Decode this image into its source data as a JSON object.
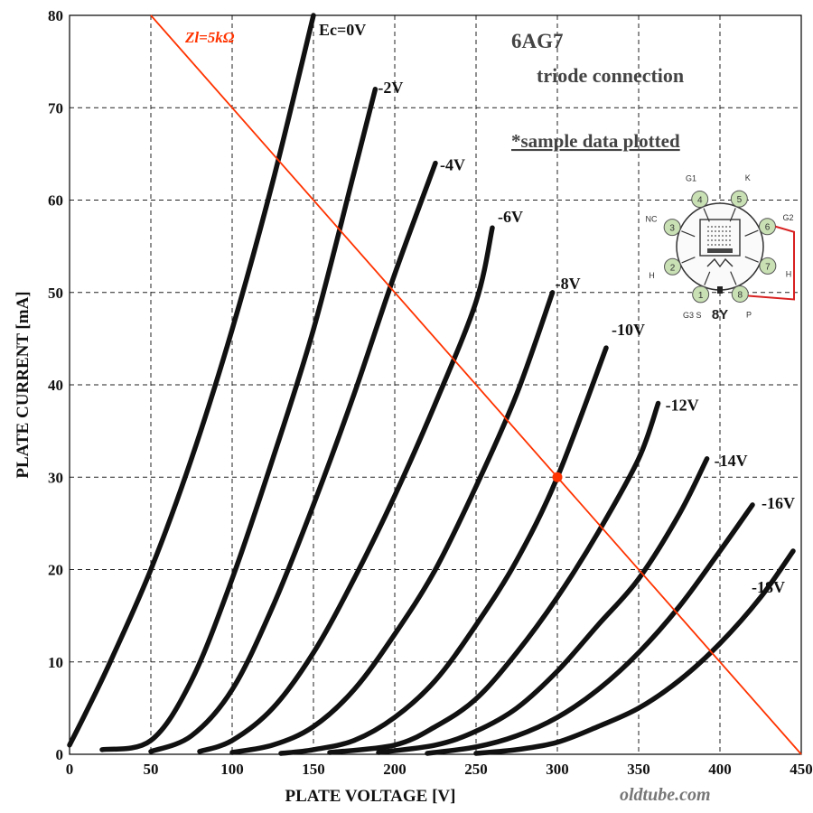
{
  "chart_data": {
    "type": "line",
    "title": "6AG7",
    "subtitle": "triode connection",
    "note": "*sample data plotted",
    "xlabel": "PLATE VOLTAGE  [V]",
    "ylabel": "PLATE CURRENT  [mA]",
    "xlim": [
      0,
      450
    ],
    "ylim": [
      0,
      80
    ],
    "xticks": [
      0,
      50,
      100,
      150,
      200,
      250,
      300,
      350,
      400,
      450
    ],
    "yticks": [
      0,
      10,
      20,
      30,
      40,
      50,
      60,
      70,
      80
    ],
    "grid": true,
    "series": [
      {
        "name": "Ec=0V",
        "x": [
          0,
          10,
          25,
          50,
          75,
          100,
          125,
          150
        ],
        "y": [
          1,
          4.5,
          10,
          20,
          32,
          46,
          62,
          80
        ]
      },
      {
        "name": "-2V",
        "x": [
          20,
          50,
          75,
          100,
          125,
          150,
          175,
          188
        ],
        "y": [
          0.5,
          1.5,
          8,
          19,
          32,
          46,
          63,
          72
        ]
      },
      {
        "name": "-4V",
        "x": [
          50,
          75,
          100,
          125,
          150,
          175,
          200,
          225
        ],
        "y": [
          0.3,
          2,
          7,
          16,
          27,
          39,
          52,
          64
        ]
      },
      {
        "name": "-6V",
        "x": [
          80,
          100,
          125,
          150,
          175,
          200,
          225,
          250,
          260
        ],
        "y": [
          0.3,
          1.5,
          5,
          11,
          19,
          28,
          38,
          49,
          57
        ]
      },
      {
        "name": "-8V",
        "x": [
          100,
          125,
          150,
          175,
          200,
          225,
          250,
          275,
          297
        ],
        "y": [
          0.2,
          1,
          3,
          7,
          13,
          20,
          29,
          39,
          50
        ]
      },
      {
        "name": "-10V",
        "x": [
          130,
          150,
          175,
          200,
          225,
          250,
          275,
          300,
          330
        ],
        "y": [
          0.1,
          0.5,
          1.5,
          4,
          8,
          14,
          21,
          30,
          44
        ]
      },
      {
        "name": "-12V",
        "x": [
          160,
          200,
          225,
          250,
          275,
          300,
          325,
          350,
          362
        ],
        "y": [
          0.2,
          1,
          3,
          6,
          11,
          17,
          24,
          32,
          38
        ]
      },
      {
        "name": "-14V",
        "x": [
          190,
          225,
          250,
          275,
          300,
          325,
          350,
          375,
          392
        ],
        "y": [
          0.2,
          1,
          2.5,
          5,
          9,
          14,
          19,
          26,
          32
        ]
      },
      {
        "name": "-16V",
        "x": [
          220,
          250,
          275,
          300,
          325,
          350,
          375,
          400,
          420
        ],
        "y": [
          0.1,
          0.8,
          2,
          4,
          7,
          11,
          16,
          22,
          27
        ]
      },
      {
        "name": "-18V",
        "x": [
          250,
          275,
          300,
          325,
          350,
          375,
          400,
          425,
          445
        ],
        "y": [
          0.1,
          0.5,
          1.3,
          3,
          5,
          8,
          12,
          17,
          22
        ]
      }
    ],
    "load_line": {
      "name": "Zl=5kΩ",
      "x": [
        50,
        450
      ],
      "y": [
        80,
        0
      ],
      "color": "#ff3300"
    },
    "operating_point": {
      "x": 300,
      "y": 30,
      "color": "#ff3300"
    }
  },
  "tube_base": {
    "type_label": "8Y",
    "pins": [
      {
        "num": "1",
        "name": "G3 S"
      },
      {
        "num": "2",
        "name": "H"
      },
      {
        "num": "3",
        "name": "NC"
      },
      {
        "num": "4",
        "name": "G1"
      },
      {
        "num": "5",
        "name": "K"
      },
      {
        "num": "6",
        "name": "G2"
      },
      {
        "num": "7",
        "name": "H"
      },
      {
        "num": "8",
        "name": "P"
      }
    ],
    "pin_color": "#c8e0b4",
    "strap_color": "#d82020"
  },
  "credit": "oldtube.com"
}
